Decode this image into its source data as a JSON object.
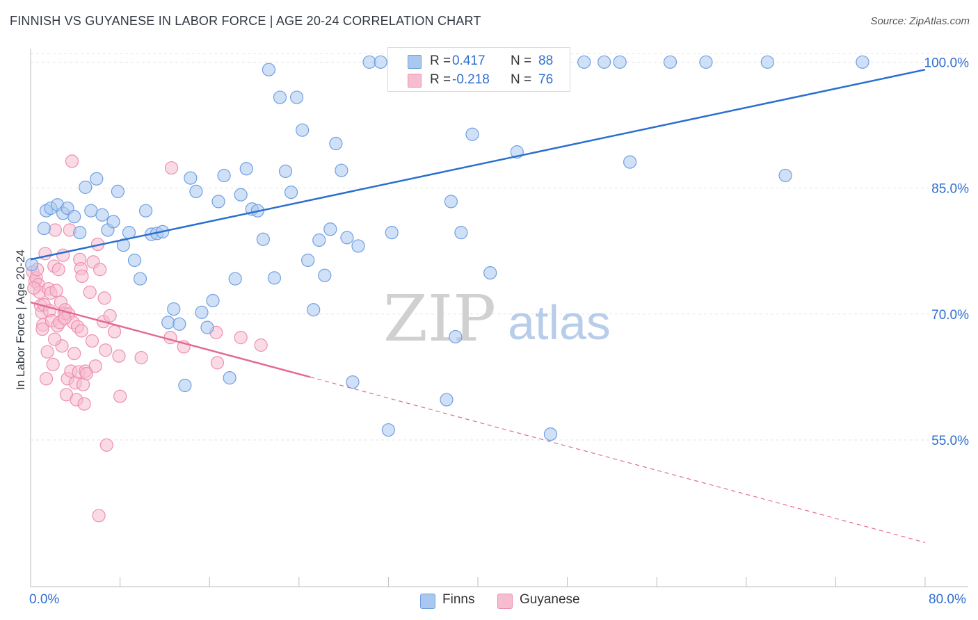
{
  "header": {
    "title": "FINNISH VS GUYANESE IN LABOR FORCE | AGE 20-24 CORRELATION CHART",
    "source": "Source: ZipAtlas.com"
  },
  "watermark": {
    "zip": "ZIP",
    "atlas": "atlas"
  },
  "legend": {
    "rows": [
      {
        "r_label": "R =",
        "r_value": "0.417",
        "n_label": "N =",
        "n_value": "88"
      },
      {
        "r_label": "R =",
        "r_value": "-0.218",
        "n_label": "N =",
        "n_value": "76"
      }
    ]
  },
  "bottom_legend": {
    "finns": "Finns",
    "guyanese": "Guyanese"
  },
  "x_axis": {
    "min_label": "0.0%",
    "max_label": "80.0%"
  },
  "colors": {
    "finns_fill": "#a9c8f0",
    "finns_stroke": "#6f9fe0",
    "finns_line": "#2a6fd0",
    "guyanese_fill": "#f6bcd0",
    "guyanese_stroke": "#ee8fb0",
    "guyanese_line": "#e36a94",
    "tick_label": "#2f6fd0",
    "grid": "#e3e3e3"
  },
  "chart_data": {
    "type": "scatter",
    "title": "FINNISH VS GUYANESE IN LABOR FORCE | AGE 20-24 CORRELATION CHART",
    "xlabel": "",
    "ylabel": "In Labor Force | Age 20-24",
    "xlim": [
      0,
      80
    ],
    "ylim": [
      38.7,
      101.6
    ],
    "y_ticks": [
      {
        "value": 55,
        "label": "55.0%"
      },
      {
        "value": 70,
        "label": "70.0%"
      },
      {
        "value": 85,
        "label": "85.0%"
      },
      {
        "value": 100,
        "label": "100.0%"
      }
    ],
    "x_tick_labels": [
      "0.0%",
      "80.0%"
    ],
    "grid": true,
    "legend_position": "top-center",
    "series": [
      {
        "name": "Finns",
        "r": 0.417,
        "n": 88,
        "trend": {
          "x": [
            0,
            80
          ],
          "y": [
            76.5,
            99.1
          ],
          "style": "solid"
        },
        "points": [
          [
            0.1,
            75.9
          ],
          [
            1.2,
            80.2
          ],
          [
            1.4,
            82.3
          ],
          [
            1.8,
            82.6
          ],
          [
            2.4,
            83.0
          ],
          [
            2.9,
            82.0
          ],
          [
            3.3,
            82.6
          ],
          [
            3.9,
            81.6
          ],
          [
            4.4,
            79.7
          ],
          [
            4.9,
            85.1
          ],
          [
            5.4,
            82.3
          ],
          [
            5.9,
            86.1
          ],
          [
            6.4,
            81.8
          ],
          [
            6.9,
            80.0
          ],
          [
            7.4,
            81.0
          ],
          [
            7.8,
            84.6
          ],
          [
            8.3,
            78.2
          ],
          [
            8.8,
            79.7
          ],
          [
            9.3,
            76.4
          ],
          [
            9.8,
            74.2
          ],
          [
            10.3,
            82.3
          ],
          [
            10.8,
            79.5
          ],
          [
            11.3,
            79.6
          ],
          [
            11.8,
            79.8
          ],
          [
            12.3,
            69.0
          ],
          [
            12.8,
            70.6
          ],
          [
            13.3,
            68.8
          ],
          [
            13.8,
            61.5
          ],
          [
            14.3,
            86.2
          ],
          [
            14.8,
            84.6
          ],
          [
            15.3,
            70.2
          ],
          [
            15.8,
            68.4
          ],
          [
            16.3,
            71.6
          ],
          [
            16.8,
            83.4
          ],
          [
            17.3,
            86.5
          ],
          [
            17.8,
            62.4
          ],
          [
            18.3,
            74.2
          ],
          [
            18.8,
            84.2
          ],
          [
            19.3,
            87.3
          ],
          [
            19.8,
            82.5
          ],
          [
            20.3,
            82.3
          ],
          [
            20.8,
            78.9
          ],
          [
            21.3,
            99.1
          ],
          [
            21.8,
            74.3
          ],
          [
            22.3,
            95.8
          ],
          [
            22.8,
            87.0
          ],
          [
            23.3,
            84.5
          ],
          [
            23.8,
            95.8
          ],
          [
            24.3,
            91.9
          ],
          [
            24.8,
            76.4
          ],
          [
            25.3,
            70.5
          ],
          [
            25.8,
            78.8
          ],
          [
            26.3,
            74.6
          ],
          [
            26.8,
            80.1
          ],
          [
            27.3,
            90.3
          ],
          [
            27.8,
            87.1
          ],
          [
            28.3,
            79.1
          ],
          [
            28.8,
            61.9
          ],
          [
            29.3,
            78.1
          ],
          [
            30.3,
            100.0
          ],
          [
            31.3,
            100.0
          ],
          [
            32.0,
            56.2
          ],
          [
            32.3,
            79.7
          ],
          [
            33.3,
            100.0
          ],
          [
            34.3,
            100.0
          ],
          [
            35.3,
            100.0
          ],
          [
            37.2,
            59.8
          ],
          [
            37.6,
            83.4
          ],
          [
            38.0,
            67.3
          ],
          [
            38.5,
            79.7
          ],
          [
            39.5,
            91.4
          ],
          [
            40.5,
            100.0
          ],
          [
            41.1,
            74.9
          ],
          [
            42.5,
            100.0
          ],
          [
            43.5,
            89.3
          ],
          [
            44.6,
            100.0
          ],
          [
            45.5,
            100.0
          ],
          [
            46.5,
            55.7
          ],
          [
            47.5,
            100.0
          ],
          [
            49.5,
            100.0
          ],
          [
            51.3,
            100.0
          ],
          [
            52.7,
            100.0
          ],
          [
            53.6,
            88.1
          ],
          [
            57.2,
            100.0
          ],
          [
            60.4,
            100.0
          ],
          [
            65.9,
            100.0
          ],
          [
            67.5,
            86.5
          ],
          [
            74.4,
            100.0
          ]
        ]
      },
      {
        "name": "Guyanese",
        "r": -0.218,
        "n": 76,
        "trend": {
          "x": [
            0,
            25
          ],
          "y": [
            71.4,
            62.5
          ],
          "style": "solid",
          "extension": {
            "x": [
              25,
              80
            ],
            "y": [
              62.5,
              42.8
            ],
            "style": "dashed"
          }
        },
        "points": [
          [
            0.2,
            75.0
          ],
          [
            0.4,
            73.9
          ],
          [
            0.5,
            74.3
          ],
          [
            0.6,
            75.3
          ],
          [
            0.7,
            73.5
          ],
          [
            0.8,
            72.6
          ],
          [
            0.9,
            71.0
          ],
          [
            1.0,
            70.2
          ],
          [
            1.1,
            68.7
          ],
          [
            1.2,
            71.1
          ],
          [
            1.3,
            77.2
          ],
          [
            1.4,
            62.3
          ],
          [
            1.5,
            65.5
          ],
          [
            1.6,
            73.0
          ],
          [
            1.7,
            70.4
          ],
          [
            1.8,
            72.5
          ],
          [
            1.9,
            69.2
          ],
          [
            2.0,
            64.0
          ],
          [
            2.1,
            75.7
          ],
          [
            2.2,
            80.0
          ],
          [
            2.3,
            72.8
          ],
          [
            2.4,
            68.6
          ],
          [
            2.5,
            75.3
          ],
          [
            2.6,
            69.0
          ],
          [
            2.7,
            71.4
          ],
          [
            2.8,
            66.2
          ],
          [
            2.9,
            77.0
          ],
          [
            3.0,
            70.1
          ],
          [
            3.1,
            70.5
          ],
          [
            3.2,
            60.4
          ],
          [
            3.3,
            62.3
          ],
          [
            3.4,
            70.0
          ],
          [
            3.5,
            80.0
          ],
          [
            3.6,
            63.2
          ],
          [
            3.7,
            88.2
          ],
          [
            3.8,
            69.0
          ],
          [
            3.9,
            65.3
          ],
          [
            4.0,
            61.8
          ],
          [
            4.1,
            59.8
          ],
          [
            4.2,
            68.5
          ],
          [
            4.3,
            63.1
          ],
          [
            4.4,
            76.5
          ],
          [
            4.5,
            75.4
          ],
          [
            4.6,
            74.5
          ],
          [
            4.7,
            61.6
          ],
          [
            4.8,
            59.3
          ],
          [
            4.9,
            63.2
          ],
          [
            5.0,
            62.9
          ],
          [
            5.3,
            72.6
          ],
          [
            5.6,
            76.2
          ],
          [
            5.8,
            63.8
          ],
          [
            6.0,
            78.3
          ],
          [
            6.1,
            46.0
          ],
          [
            6.2,
            75.3
          ],
          [
            6.5,
            69.1
          ],
          [
            6.6,
            71.9
          ],
          [
            6.7,
            65.7
          ],
          [
            6.8,
            54.4
          ],
          [
            7.1,
            69.8
          ],
          [
            7.9,
            65.0
          ],
          [
            8.0,
            60.2
          ],
          [
            9.9,
            64.8
          ],
          [
            12.5,
            67.2
          ],
          [
            12.6,
            87.4
          ],
          [
            13.7,
            66.1
          ],
          [
            16.6,
            67.8
          ],
          [
            16.7,
            64.2
          ],
          [
            18.8,
            67.2
          ],
          [
            20.6,
            66.3
          ],
          [
            0.3,
            73.1
          ],
          [
            1.05,
            68.2
          ],
          [
            2.15,
            67.0
          ],
          [
            3.05,
            69.5
          ],
          [
            4.55,
            68.0
          ],
          [
            5.5,
            66.8
          ],
          [
            7.5,
            67.9
          ]
        ]
      }
    ]
  }
}
